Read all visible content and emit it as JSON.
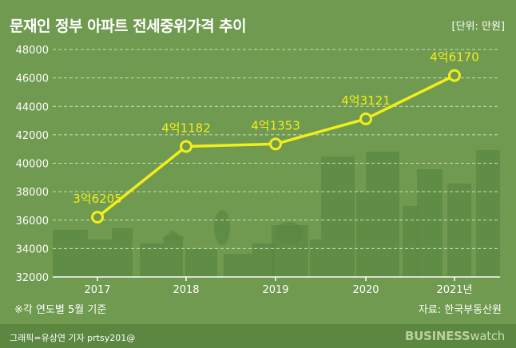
{
  "header": {
    "title": "문재인 정부 아파트 전세중위가격 추이",
    "unit": "[단위: 만원]"
  },
  "footnote": "※각 연도별 5월 기준",
  "source": "자료: 한국부동산원",
  "credit": "그래픽=유상연 기자 prtsy201@",
  "brand": {
    "bold": "BUSINESS",
    "light": "watch"
  },
  "colors": {
    "background": "#6f9a4f",
    "line": "#f2ee1c",
    "marker_fill": "#6f9a4f",
    "label": "#f2ee1c",
    "buildings": "#5b8841",
    "grid": "#dfe9d3",
    "axis_text": "#ffffff"
  },
  "chart_data": {
    "type": "line",
    "categories": [
      "2017",
      "2018",
      "2019",
      "2020",
      "2021년"
    ],
    "values": [
      36205,
      41182,
      41353,
      43121,
      46170
    ],
    "data_labels": [
      "3억6205",
      "4억1182",
      "4억1353",
      "4억3121",
      "4억6170"
    ],
    "ylim": [
      32000,
      48000
    ],
    "yticks": [
      32000,
      34000,
      36000,
      38000,
      40000,
      42000,
      44000,
      46000,
      48000
    ],
    "grid": "horizontal dashed",
    "legend": "none"
  }
}
